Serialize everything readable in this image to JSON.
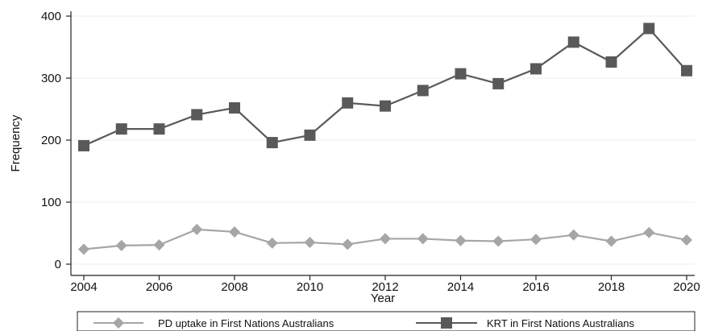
{
  "chart_data": {
    "type": "line",
    "title": "",
    "xlabel": "Year",
    "ylabel": "Frequency",
    "x": [
      2004,
      2005,
      2006,
      2007,
      2008,
      2009,
      2010,
      2011,
      2012,
      2013,
      2014,
      2015,
      2016,
      2017,
      2018,
      2019,
      2020
    ],
    "xticks": [
      2004,
      2006,
      2008,
      2010,
      2012,
      2014,
      2016,
      2018,
      2020
    ],
    "yticks": [
      0,
      100,
      200,
      300,
      400
    ],
    "xlim": [
      2004,
      2020
    ],
    "ylim": [
      0,
      400
    ],
    "grid": true,
    "legend_position": "bottom",
    "series": [
      {
        "name": "PD uptake in First Nations Australians",
        "marker": "diamond",
        "color": "#a6a6a6",
        "values": [
          24,
          30,
          31,
          56,
          52,
          34,
          35,
          32,
          41,
          41,
          38,
          37,
          40,
          47,
          37,
          51,
          39
        ]
      },
      {
        "name": "KRT in First Nations Australians",
        "marker": "square",
        "color": "#595959",
        "values": [
          191,
          218,
          218,
          241,
          252,
          196,
          208,
          260,
          255,
          280,
          307,
          291,
          315,
          358,
          326,
          380,
          312
        ]
      }
    ]
  }
}
